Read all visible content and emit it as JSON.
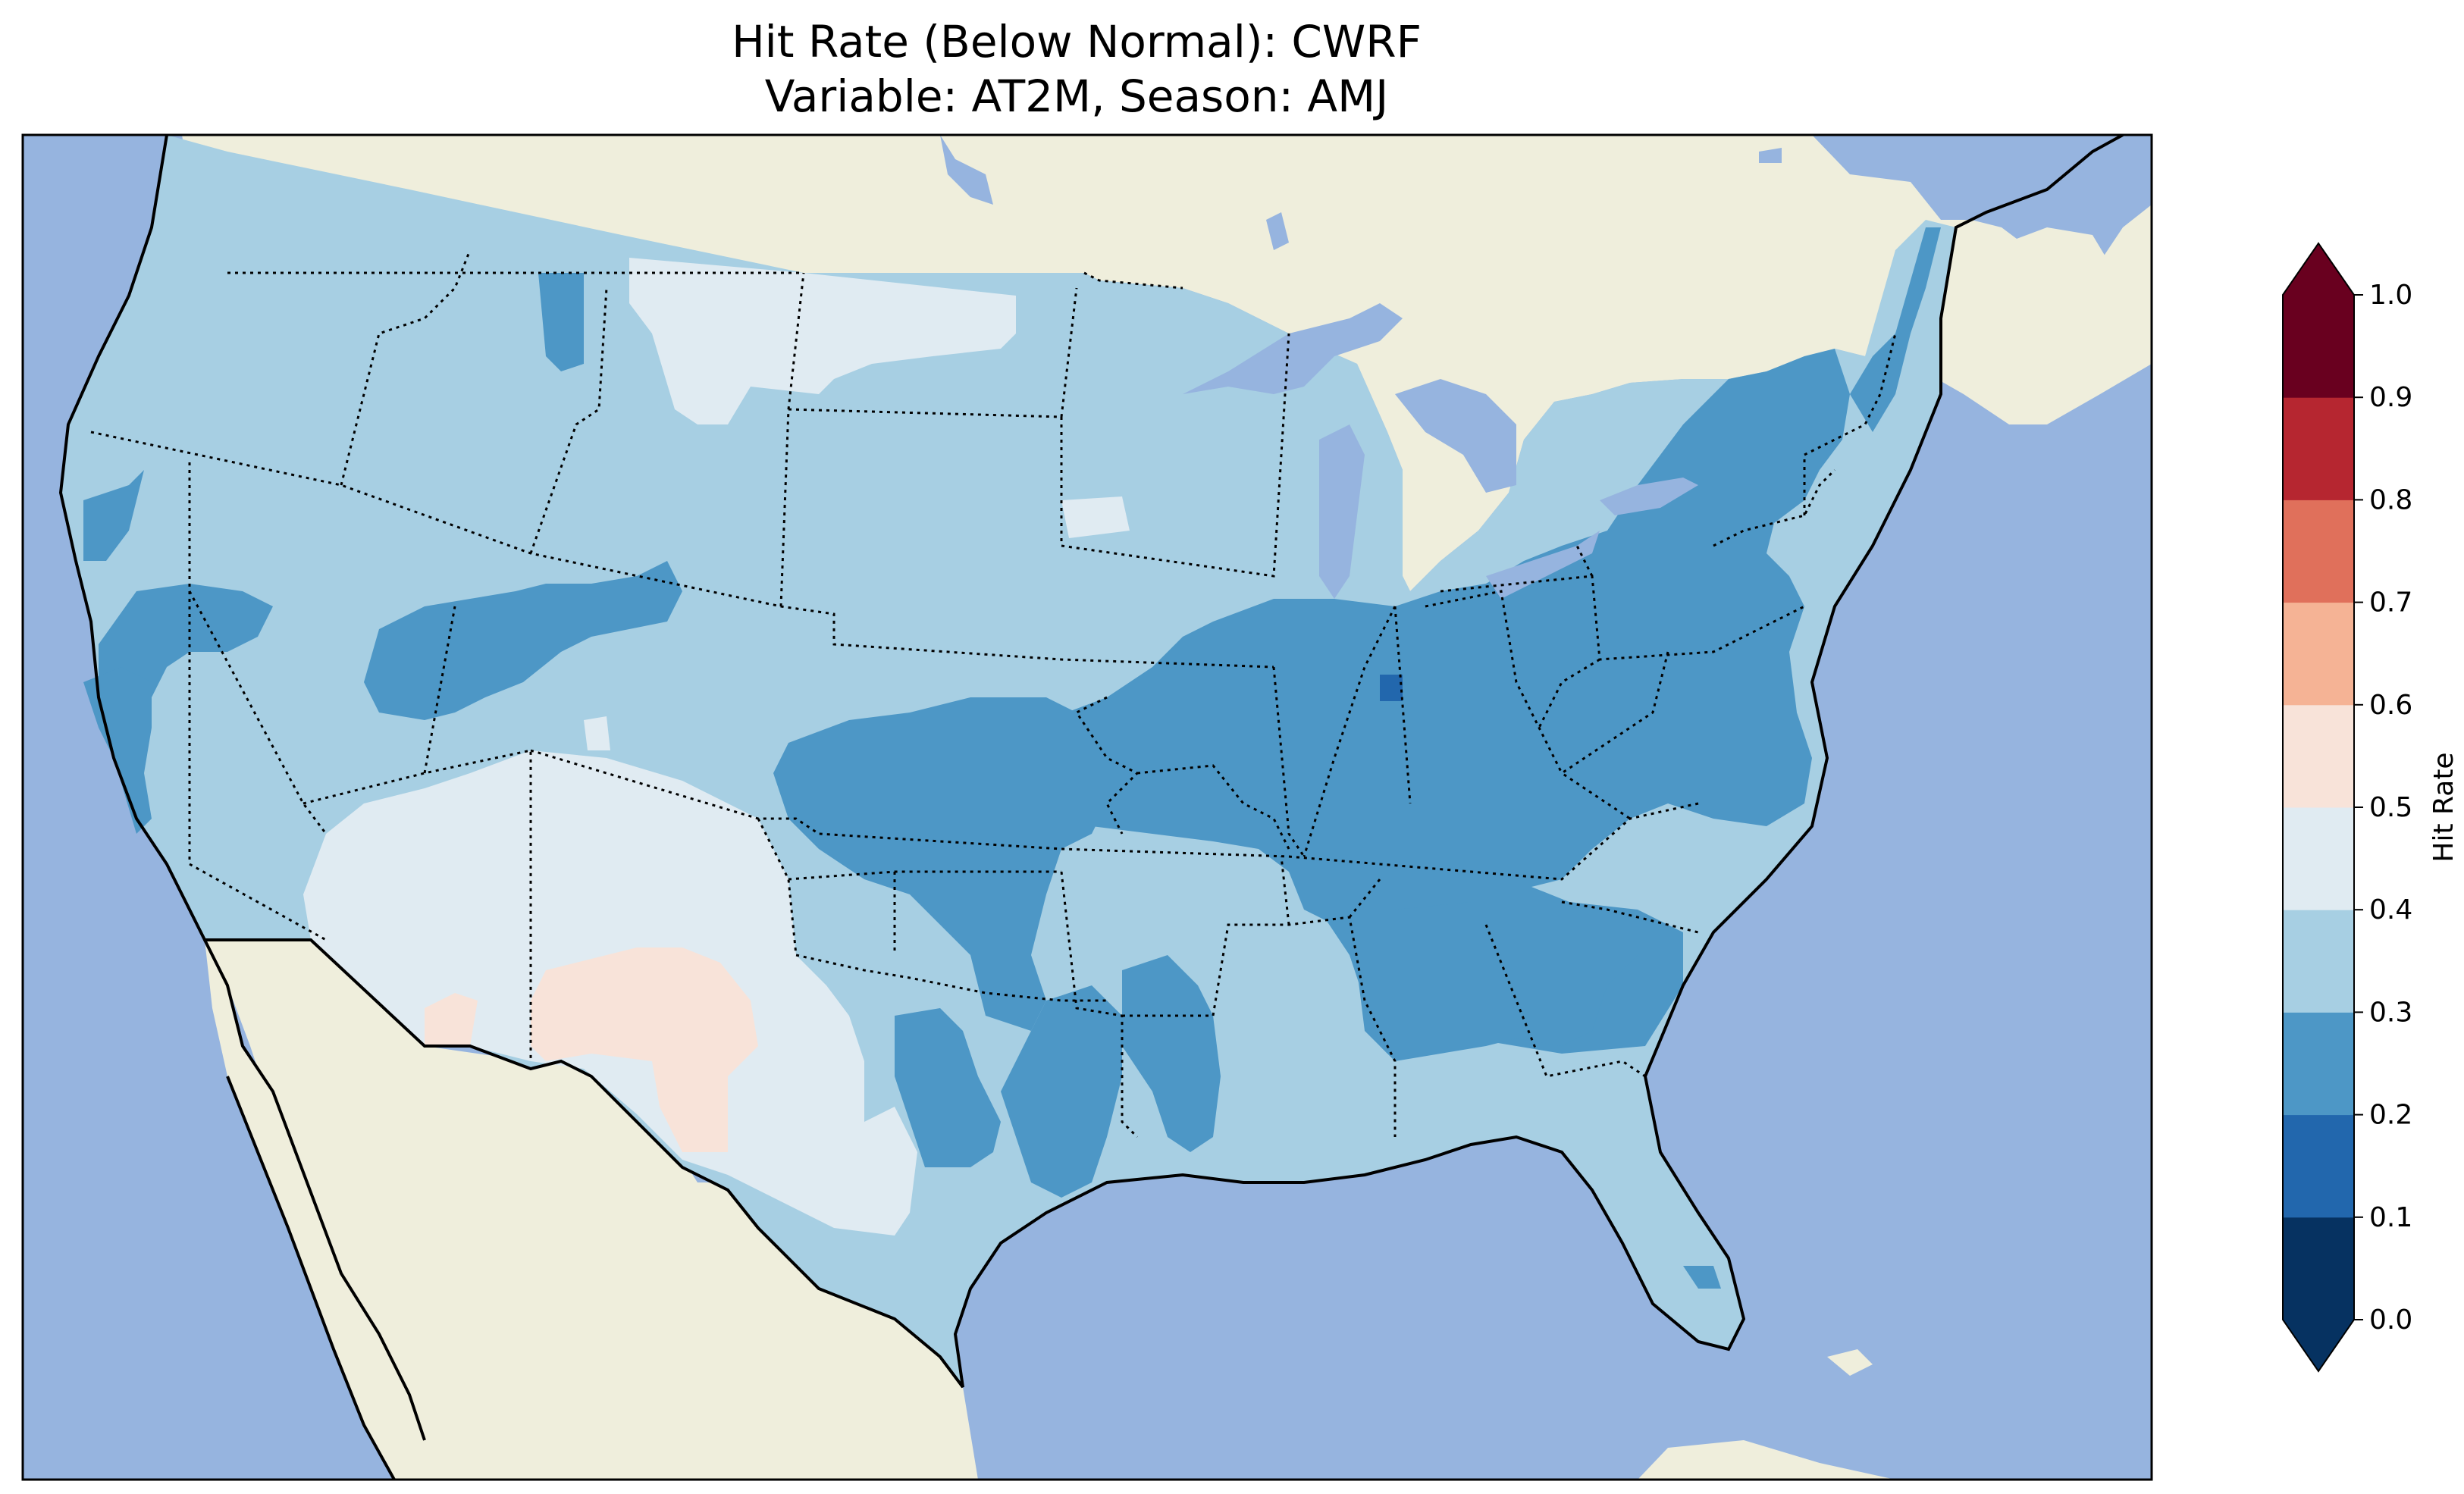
{
  "title_line1": "Hit Rate (Below Normal): CWRF",
  "title_line2": "Variable: AT2M, Season: AMJ",
  "colors": {
    "ocean": "#96b4df",
    "land": "#efeedc",
    "lakes": "#96b4df",
    "bin_0_1": "#063261",
    "bin_1_2": "#2267ad",
    "bin_2_3": "#4d97c6",
    "bin_3_4": "#a7cfe3",
    "bin_4_5": "#e0ebf2",
    "bin_5_6": "#f8e3d9",
    "bin_6_7": "#f5b395",
    "bin_7_8": "#e0705b",
    "bin_8_9": "#b62630",
    "bin_9_10": "#69001f"
  },
  "colorbar": {
    "label": "Hit Rate",
    "ticks": [
      "0.0",
      "0.1",
      "0.2",
      "0.3",
      "0.4",
      "0.5",
      "0.6",
      "0.7",
      "0.8",
      "0.9",
      "1.0"
    ],
    "extend": "both"
  },
  "chart_data": {
    "type": "heatmap",
    "title": "Hit Rate (Below Normal): CWRF",
    "subtitle": "Variable: AT2M, Season: AMJ",
    "colorbar_label": "Hit Rate",
    "vmin": 0.0,
    "vmax": 1.0,
    "levels": [
      0.0,
      0.1,
      0.2,
      0.3,
      0.4,
      0.5,
      0.6,
      0.7,
      0.8,
      0.9,
      1.0
    ],
    "regions": [
      {
        "region": "Pacific Northwest",
        "value_range": [
          0.3,
          0.4
        ]
      },
      {
        "region": "Northern Rockies / Montana",
        "value_range": [
          0.4,
          0.5
        ]
      },
      {
        "region": "Northern Plains",
        "value_range": [
          0.3,
          0.4
        ]
      },
      {
        "region": "Great Basin",
        "value_range": [
          0.3,
          0.4
        ]
      },
      {
        "region": "Southwest (Arizona / New Mexico)",
        "value_range": [
          0.4,
          0.5
        ]
      },
      {
        "region": "Southern Arizona / New Mexico / West Texas",
        "value_range": [
          0.5,
          0.6
        ]
      },
      {
        "region": "Ohio Valley / Midwest",
        "value_range": [
          0.2,
          0.3
        ]
      },
      {
        "region": "Central Indiana",
        "value_range": [
          0.1,
          0.2
        ]
      },
      {
        "region": "Southeast",
        "value_range": [
          0.2,
          0.3
        ]
      },
      {
        "region": "Northeast",
        "value_range": [
          0.2,
          0.3
        ]
      },
      {
        "region": "Florida",
        "value_range": [
          0.3,
          0.4
        ]
      },
      {
        "region": "Texas (east)",
        "value_range": [
          0.2,
          0.3
        ]
      },
      {
        "region": "Texas (west)",
        "value_range": [
          0.4,
          0.5
        ]
      }
    ]
  }
}
